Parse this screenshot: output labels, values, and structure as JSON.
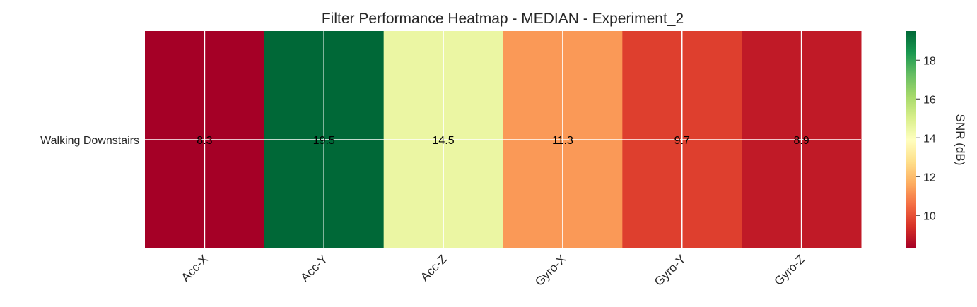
{
  "chart_data": {
    "type": "heatmap",
    "title": "Filter Performance Heatmap - MEDIAN - Experiment_2",
    "rows": [
      "Walking Downstairs"
    ],
    "columns": [
      "Acc-X",
      "Acc-Y",
      "Acc-Z",
      "Gyro-X",
      "Gyro-Y",
      "Gyro-Z"
    ],
    "values": [
      [
        8.3,
        19.5,
        14.5,
        11.3,
        9.7,
        8.9
      ]
    ],
    "cell_labels": [
      [
        "8.3",
        "19.5",
        "14.5",
        "11.3",
        "9.7",
        "8.9"
      ]
    ],
    "colormap": "RdYlGn",
    "colorbar": {
      "label": "SNR (dB)",
      "range": [
        8.3,
        19.5
      ],
      "ticks": [
        10,
        12,
        14,
        16,
        18
      ]
    },
    "grid": true
  }
}
